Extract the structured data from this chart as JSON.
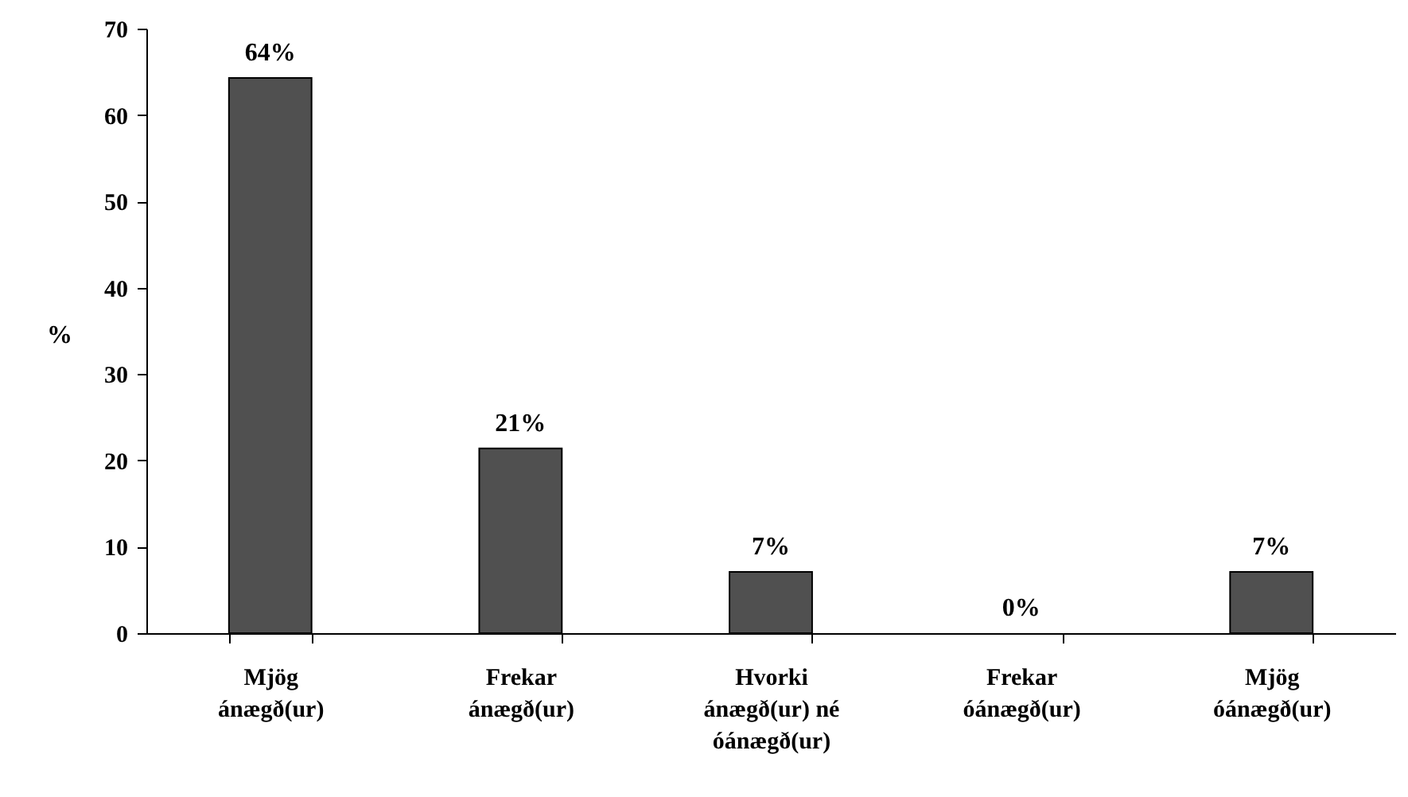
{
  "chart_data": {
    "type": "bar",
    "ylabel": "%",
    "categories": [
      "Mjög\nánægð(ur)",
      "Frekar\nánægð(ur)",
      "Hvorki\nánægð(ur) né\nóánægð(ur)",
      "Frekar\nóánægð(ur)",
      "Mjög\nóánægð(ur)"
    ],
    "values": [
      64.3,
      21.4,
      7.1,
      0,
      7.1
    ],
    "value_labels": [
      "64%",
      "21%",
      "7%",
      "0%",
      "7%"
    ],
    "color": "#505050",
    "ylim": [
      0,
      70
    ],
    "yticks": [
      0,
      10,
      20,
      30,
      40,
      50,
      60,
      70
    ],
    "grid": false
  }
}
